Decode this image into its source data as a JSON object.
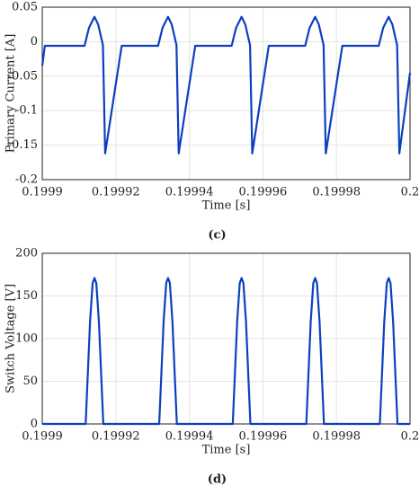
{
  "chart_data": [
    {
      "type": "line",
      "xlabel": "Time [s]",
      "ylabel": "Primary Current [A]",
      "caption": "(c)",
      "xlim": [
        0.1999,
        0.2
      ],
      "xticks": [
        0.1999,
        0.19992,
        0.19994,
        0.19996,
        0.19998,
        0.2
      ],
      "ylim": [
        -0.2,
        0.05
      ],
      "yticks": [
        -0.2,
        -0.15,
        -0.1,
        -0.05,
        0,
        0.05
      ],
      "grid": true,
      "series": [
        {
          "color": "#0d3fbf",
          "x": [
            0.1999,
            0.1999007,
            0.1999115,
            0.1999127,
            0.1999142,
            0.1999152,
            0.1999165,
            0.1999171,
            0.1999216,
            0.1999315,
            0.1999327,
            0.1999342,
            0.1999352,
            0.1999365,
            0.1999371,
            0.1999416,
            0.1999515,
            0.1999527,
            0.1999542,
            0.1999552,
            0.1999565,
            0.1999571,
            0.1999616,
            0.1999715,
            0.1999727,
            0.1999742,
            0.1999752,
            0.1999765,
            0.1999771,
            0.1999816,
            0.1999915,
            0.1999927,
            0.1999942,
            0.1999952,
            0.1999965,
            0.1999971,
            0.2
          ],
          "values": [
            -0.035,
            -0.006,
            -0.006,
            0.02,
            0.036,
            0.025,
            -0.005,
            -0.162,
            -0.006,
            -0.006,
            0.02,
            0.036,
            0.025,
            -0.005,
            -0.162,
            -0.006,
            -0.006,
            0.02,
            0.036,
            0.025,
            -0.005,
            -0.162,
            -0.006,
            -0.006,
            0.02,
            0.036,
            0.025,
            -0.005,
            -0.162,
            -0.006,
            -0.006,
            0.02,
            0.036,
            0.025,
            -0.005,
            -0.162,
            -0.045
          ]
        }
      ]
    },
    {
      "type": "line",
      "xlabel": "Time [s]",
      "ylabel": "Switch Voltage [V]",
      "caption": "(d)",
      "xlim": [
        0.1999,
        0.2
      ],
      "xticks": [
        0.1999,
        0.19992,
        0.19994,
        0.19996,
        0.19998,
        0.2
      ],
      "ylim": [
        0,
        200
      ],
      "yticks": [
        0,
        50,
        100,
        150,
        200
      ],
      "grid": true,
      "series": [
        {
          "color": "#0d3fbf",
          "x": [
            0.1999,
            0.1999118,
            0.199913,
            0.1999137,
            0.1999142,
            0.1999147,
            0.1999154,
            0.1999166,
            0.1999318,
            0.199933,
            0.1999337,
            0.1999342,
            0.1999347,
            0.1999354,
            0.1999366,
            0.1999518,
            0.199953,
            0.1999537,
            0.1999542,
            0.1999547,
            0.1999554,
            0.1999566,
            0.1999718,
            0.199973,
            0.1999737,
            0.1999742,
            0.1999747,
            0.1999754,
            0.1999766,
            0.1999918,
            0.199993,
            0.1999937,
            0.1999942,
            0.1999947,
            0.1999954,
            0.1999966,
            0.2
          ],
          "values": [
            0,
            0,
            120,
            165,
            171,
            165,
            120,
            0,
            0,
            120,
            165,
            171,
            165,
            120,
            0,
            0,
            120,
            165,
            171,
            165,
            120,
            0,
            0,
            120,
            165,
            171,
            165,
            120,
            0,
            0,
            120,
            165,
            171,
            165,
            120,
            0,
            0
          ]
        }
      ]
    }
  ]
}
